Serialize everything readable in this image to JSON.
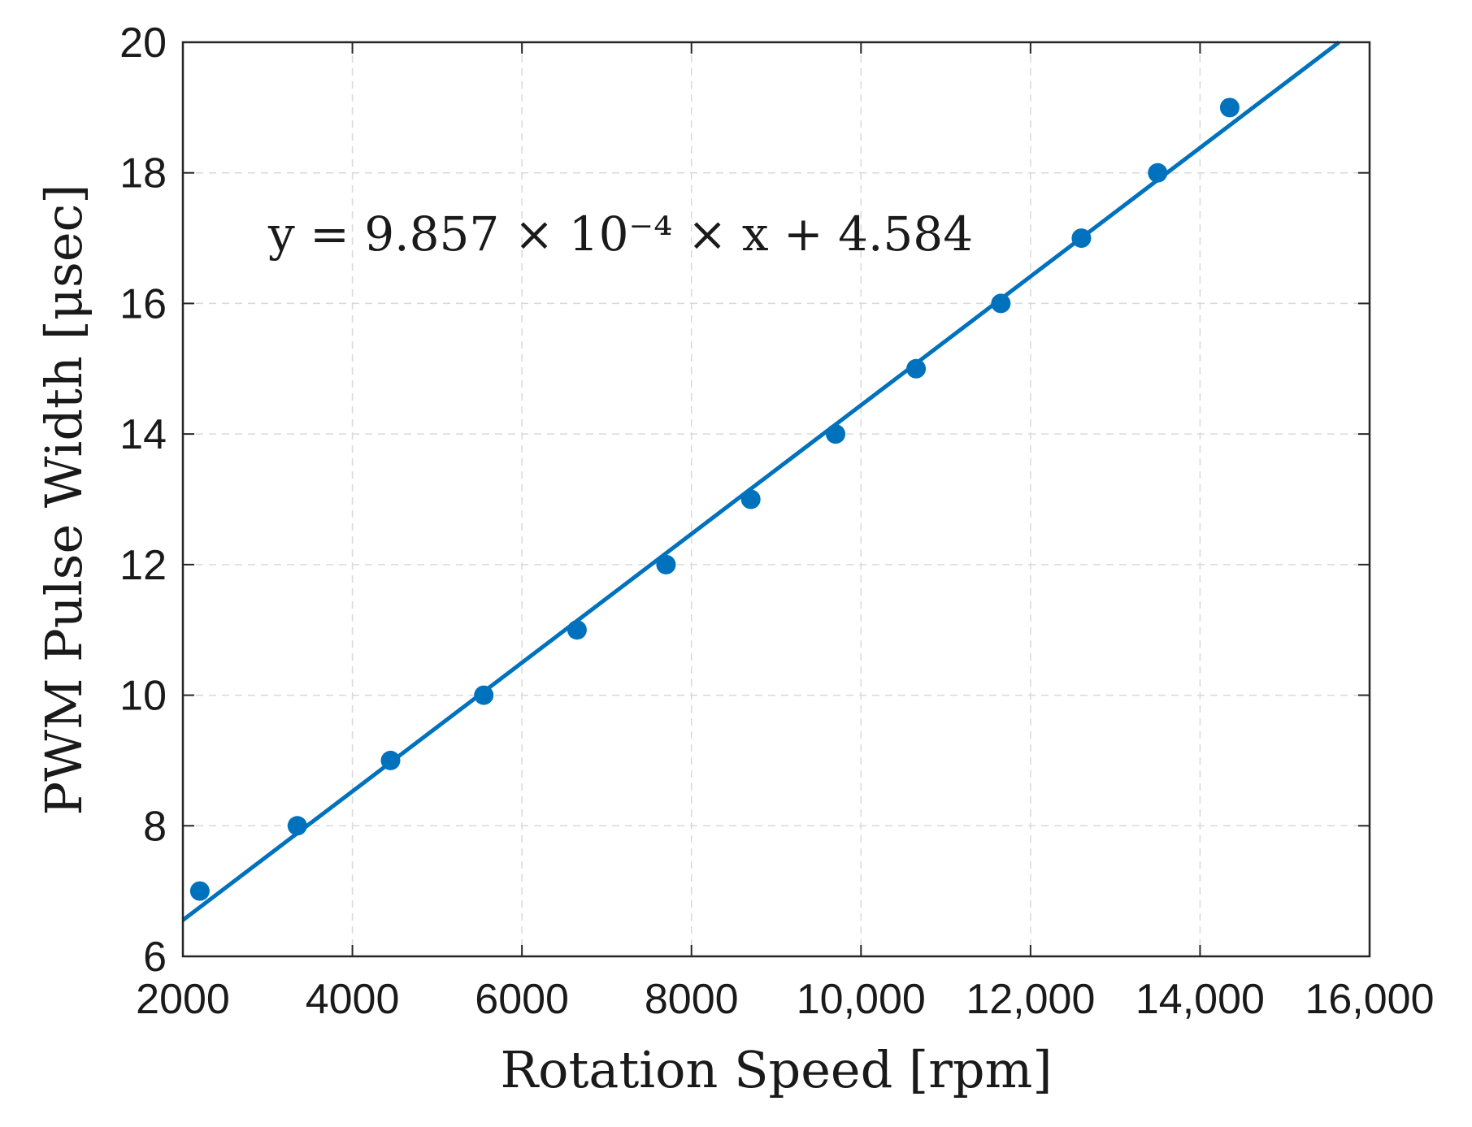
{
  "chart_data": {
    "type": "scatter",
    "title": "",
    "xlabel": "Rotation Speed [rpm]",
    "ylabel": "PWM Pulse Width [μsec]",
    "xlim": [
      2000,
      16000
    ],
    "ylim": [
      6,
      20
    ],
    "grid": true,
    "x_ticks": [
      2000,
      4000,
      6000,
      8000,
      10000,
      12000,
      14000,
      16000
    ],
    "x_tick_labels": [
      "2000",
      "4000",
      "6000",
      "8000",
      "10,000",
      "12,000",
      "14,000",
      "16,000"
    ],
    "y_ticks": [
      6,
      8,
      10,
      12,
      14,
      16,
      18,
      20
    ],
    "y_tick_labels": [
      "6",
      "8",
      "10",
      "12",
      "14",
      "16",
      "18",
      "20"
    ],
    "annotation": "y = 9.857 × 10⁻⁴ × x + 4.584",
    "series": [
      {
        "type": "scatter",
        "color": "#0072BD",
        "x": [
          2200,
          3350,
          4450,
          5550,
          6650,
          7700,
          8700,
          9700,
          10650,
          11650,
          12600,
          13500,
          14350
        ],
        "y": [
          7,
          8,
          9,
          10,
          11,
          12,
          13,
          14,
          15,
          16,
          17,
          18,
          19
        ]
      },
      {
        "type": "line",
        "color": "#0072BD",
        "slope": 0.0009857,
        "intercept": 4.584
      }
    ]
  }
}
